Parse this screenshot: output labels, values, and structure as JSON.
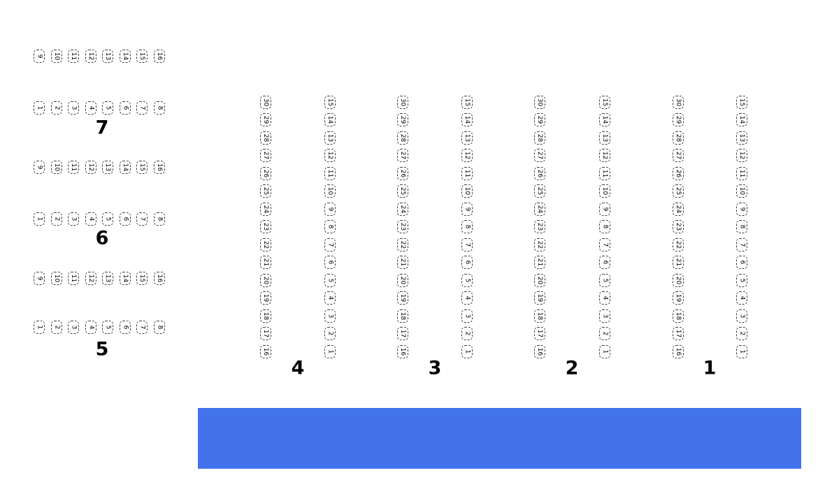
{
  "stage": {
    "color": "#4273ED"
  },
  "left_sections": [
    {
      "label": "7",
      "rows": [
        {
          "seats": [
            9,
            10,
            11,
            12,
            13,
            14,
            15,
            16
          ]
        },
        {
          "seats": [
            1,
            2,
            3,
            4,
            5,
            6,
            7,
            8
          ]
        }
      ]
    },
    {
      "label": "6",
      "rows": [
        {
          "seats": [
            9,
            10,
            11,
            12,
            13,
            14,
            15,
            16
          ]
        },
        {
          "seats": [
            1,
            2,
            3,
            4,
            5,
            6,
            7,
            8
          ]
        }
      ]
    },
    {
      "label": "5",
      "rows": [
        {
          "seats": [
            9,
            10,
            11,
            12,
            13,
            14,
            15,
            16
          ]
        },
        {
          "seats": [
            1,
            2,
            3,
            4,
            5,
            6,
            7,
            8
          ]
        }
      ]
    }
  ],
  "right_sections": [
    {
      "label": "4",
      "columns": [
        {
          "seats": [
            30,
            29,
            28,
            27,
            26,
            25,
            24,
            23,
            22,
            21,
            20,
            19,
            18,
            17,
            16
          ]
        },
        {
          "seats": [
            15,
            14,
            13,
            12,
            11,
            10,
            9,
            8,
            7,
            6,
            5,
            4,
            3,
            2,
            1
          ]
        }
      ]
    },
    {
      "label": "3",
      "columns": [
        {
          "seats": [
            30,
            29,
            28,
            27,
            26,
            25,
            24,
            23,
            22,
            21,
            20,
            19,
            18,
            17,
            16
          ]
        },
        {
          "seats": [
            15,
            14,
            13,
            12,
            11,
            10,
            9,
            8,
            7,
            6,
            5,
            4,
            3,
            2,
            1
          ]
        }
      ]
    },
    {
      "label": "2",
      "columns": [
        {
          "seats": [
            30,
            29,
            28,
            27,
            26,
            25,
            24,
            23,
            22,
            21,
            20,
            19,
            18,
            17,
            16
          ]
        },
        {
          "seats": [
            15,
            14,
            13,
            12,
            11,
            10,
            9,
            8,
            7,
            6,
            5,
            4,
            3,
            2,
            1
          ]
        }
      ]
    },
    {
      "label": "1",
      "columns": [
        {
          "seats": [
            30,
            29,
            28,
            27,
            26,
            25,
            24,
            23,
            22,
            21,
            20,
            19,
            18,
            17,
            16
          ]
        },
        {
          "seats": [
            15,
            14,
            13,
            12,
            11,
            10,
            9,
            8,
            7,
            6,
            5,
            4,
            3,
            2,
            1
          ]
        }
      ]
    }
  ]
}
